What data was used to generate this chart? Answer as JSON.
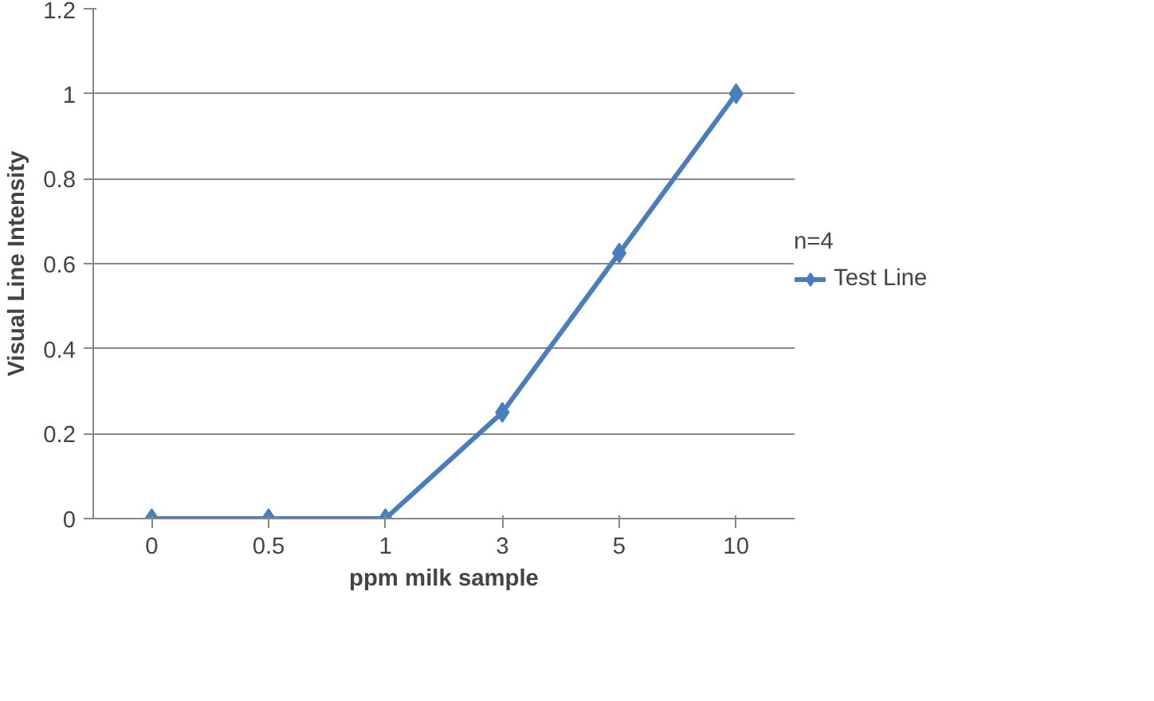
{
  "chart_data": {
    "type": "line",
    "xlabel": "ppm milk sample",
    "ylabel": "Visual Line Intensity",
    "legend_title": "n=4",
    "categories": [
      "0",
      "0.5",
      "1",
      "3",
      "5",
      "10"
    ],
    "series": [
      {
        "name": "Test Line",
        "color": "#4a7ebb",
        "values": [
          0,
          0,
          0,
          0.25,
          0.625,
          1
        ]
      }
    ],
    "ylim": [
      0,
      1.2
    ],
    "yticks": [
      0,
      0.2,
      0.4,
      0.6,
      0.8,
      1,
      1.2
    ],
    "grid": "y",
    "legend": "right",
    "marker": "diamond",
    "line_style": "solid"
  }
}
